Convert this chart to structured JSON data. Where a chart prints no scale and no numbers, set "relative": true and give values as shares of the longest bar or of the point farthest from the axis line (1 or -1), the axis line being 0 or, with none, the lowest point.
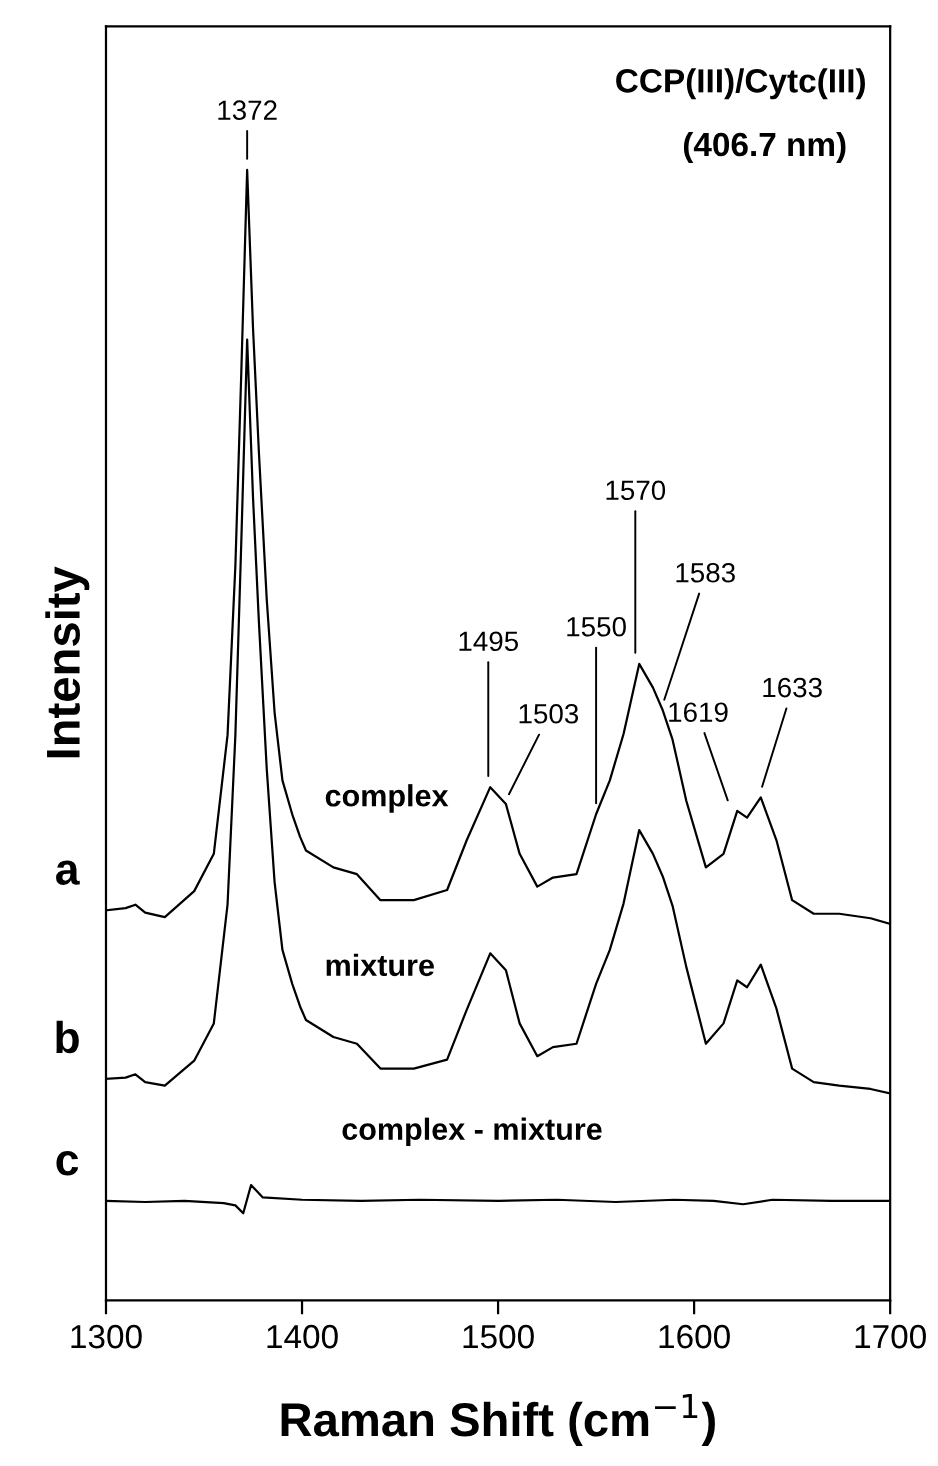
{
  "chart_data": {
    "type": "line",
    "title": "CCP(III)/Cytc(III)",
    "subtitle": "(406.7 nm)",
    "xlabel": "Raman Shift (cm$^{−1}$)",
    "ylabel": "Intensity",
    "relative": true,
    "xlim": [
      1300,
      1700
    ],
    "xticks": [
      1300,
      1400,
      1500,
      1600,
      1700
    ],
    "grid": false,
    "legend": false,
    "marker": "none",
    "line_style": "solid",
    "series": [
      {
        "name": "complex",
        "color": "#000000",
        "x": [
          1300,
          1310,
          1315,
          1320,
          1330,
          1345,
          1355,
          1362,
          1366,
          1369,
          1372,
          1375,
          1378,
          1382,
          1386,
          1390,
          1395,
          1399,
          1402,
          1416,
          1428,
          1440,
          1457,
          1474,
          1484,
          1496,
          1504,
          1511,
          1520,
          1528,
          1540,
          1550,
          1557,
          1564,
          1572,
          1579,
          1584,
          1589,
          1596,
          1606,
          1615,
          1622,
          1627,
          1634,
          1642,
          1650,
          1661,
          1674,
          1690,
          1700
        ],
        "values": [
          0.345,
          0.347,
          0.35,
          0.343,
          0.339,
          0.362,
          0.395,
          0.5,
          0.65,
          0.82,
          1.0,
          0.86,
          0.75,
          0.62,
          0.52,
          0.46,
          0.43,
          0.41,
          0.398,
          0.383,
          0.377,
          0.354,
          0.354,
          0.363,
          0.407,
          0.454,
          0.439,
          0.395,
          0.366,
          0.374,
          0.377,
          0.43,
          0.46,
          0.501,
          0.563,
          0.542,
          0.522,
          0.496,
          0.442,
          0.383,
          0.395,
          0.433,
          0.427,
          0.445,
          0.407,
          0.354,
          0.342,
          0.342,
          0.338,
          0.333
        ]
      },
      {
        "name": "mixture",
        "color": "#000000",
        "x": [
          1300,
          1310,
          1315,
          1320,
          1330,
          1345,
          1355,
          1362,
          1366,
          1369,
          1372,
          1375,
          1378,
          1382,
          1386,
          1390,
          1395,
          1399,
          1402,
          1416,
          1428,
          1440,
          1457,
          1474,
          1484,
          1496,
          1504,
          1511,
          1520,
          1528,
          1540,
          1550,
          1557,
          1564,
          1572,
          1579,
          1584,
          1589,
          1596,
          1606,
          1615,
          1622,
          1627,
          1634,
          1642,
          1650,
          1661,
          1674,
          1690,
          1700
        ],
        "values": [
          0.196,
          0.197,
          0.2,
          0.193,
          0.19,
          0.212,
          0.245,
          0.35,
          0.5,
          0.67,
          0.85,
          0.71,
          0.6,
          0.47,
          0.37,
          0.31,
          0.28,
          0.26,
          0.248,
          0.233,
          0.227,
          0.205,
          0.205,
          0.213,
          0.257,
          0.307,
          0.292,
          0.245,
          0.216,
          0.224,
          0.227,
          0.28,
          0.31,
          0.351,
          0.416,
          0.395,
          0.375,
          0.349,
          0.295,
          0.227,
          0.245,
          0.283,
          0.277,
          0.297,
          0.258,
          0.205,
          0.193,
          0.19,
          0.187,
          0.183
        ]
      },
      {
        "name": "complex - mixture",
        "color": "#000000",
        "x": [
          1300,
          1320,
          1340,
          1360,
          1366,
          1370,
          1374,
          1380,
          1400,
          1430,
          1460,
          1500,
          1530,
          1560,
          1590,
          1610,
          1625,
          1640,
          1670,
          1700
        ],
        "values": [
          0.088,
          0.087,
          0.088,
          0.086,
          0.084,
          0.077,
          0.102,
          0.091,
          0.089,
          0.088,
          0.089,
          0.088,
          0.089,
          0.087,
          0.089,
          0.088,
          0.085,
          0.089,
          0.088,
          0.088
        ]
      }
    ],
    "annotations": [
      {
        "text": "1372",
        "x": 1372,
        "y": 1.0
      },
      {
        "text": "1495",
        "x": 1495,
        "y": 0.454
      },
      {
        "text": "1503",
        "x": 1503,
        "y": 0.439
      },
      {
        "text": "1550",
        "x": 1550,
        "y": 0.43
      },
      {
        "text": "1570",
        "x": 1570,
        "y": 0.563
      },
      {
        "text": "1583",
        "x": 1583,
        "y": 0.522
      },
      {
        "text": "1619",
        "x": 1619,
        "y": 0.433
      },
      {
        "text": "1633",
        "x": 1633,
        "y": 0.445
      },
      {
        "text": "a",
        "x": 1300,
        "y": 0.345
      },
      {
        "text": "b",
        "x": 1300,
        "y": 0.196
      },
      {
        "text": "c",
        "x": 1300,
        "y": 0.088
      }
    ]
  }
}
